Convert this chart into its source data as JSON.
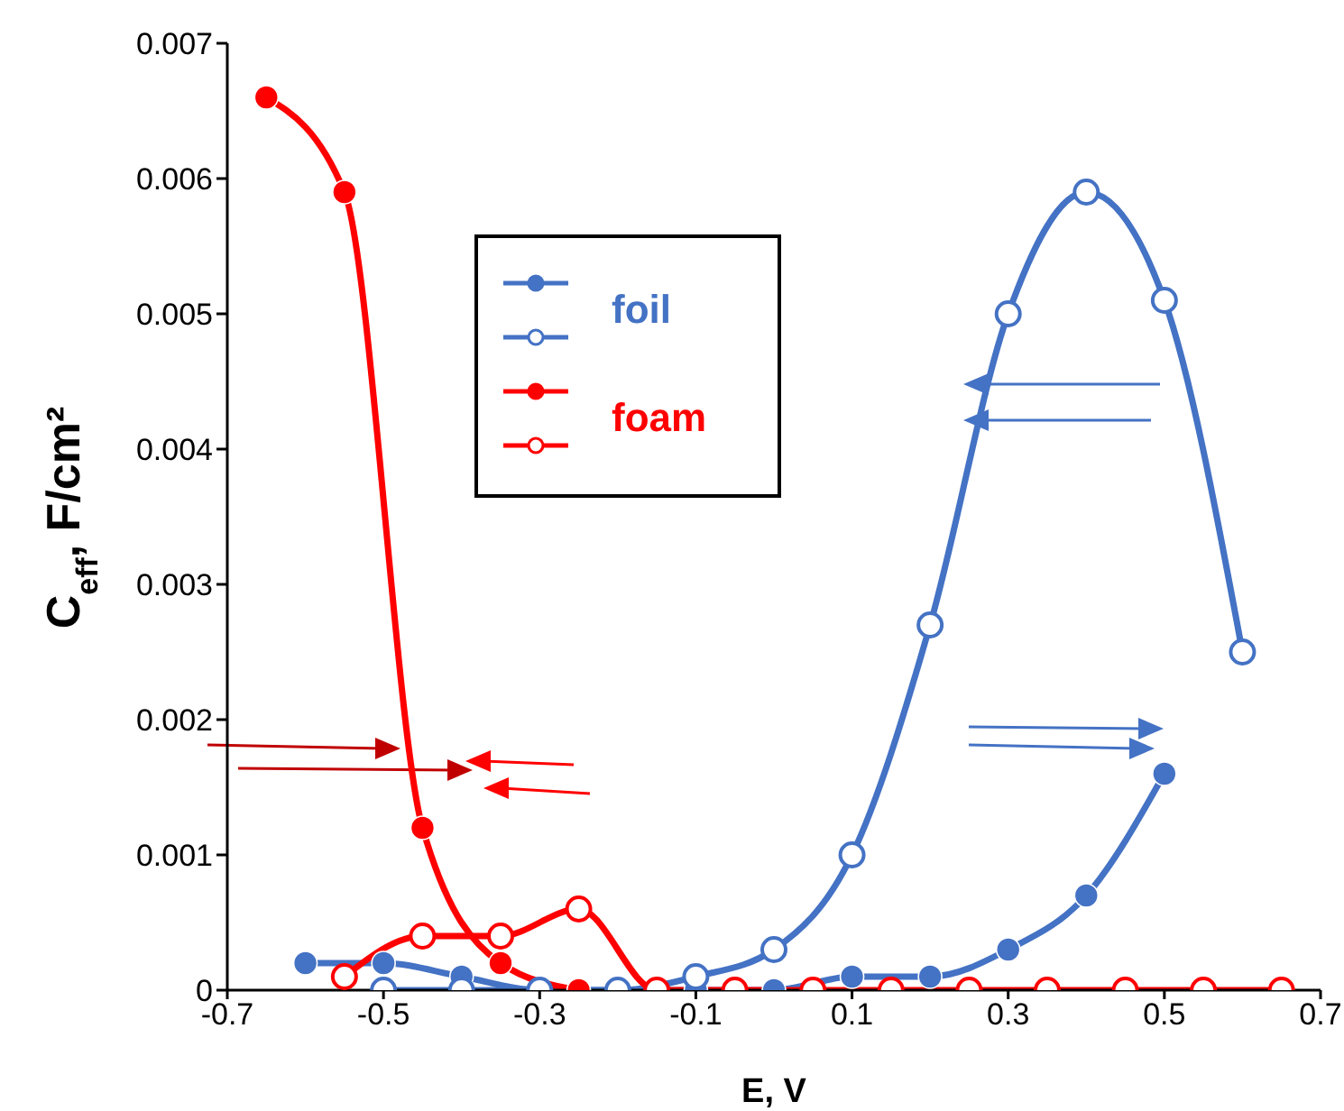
{
  "chart_data": {
    "type": "line",
    "xlabel": "E, V",
    "ylabel": "C$_{eff}$, F/cm²",
    "xlim": [
      -0.7,
      0.7
    ],
    "xticks": [
      -0.7,
      -0.5,
      -0.3,
      -0.1,
      0.1,
      0.3,
      0.5,
      0.7
    ],
    "ylim": [
      0,
      0.007
    ],
    "yticks": [
      0,
      0.001,
      0.002,
      0.003,
      0.004,
      0.005,
      0.006,
      0.007
    ],
    "grid": false,
    "legend": "top left",
    "marker": "circle",
    "line_style": "solid",
    "series": [
      {
        "name": "foil",
        "color": "#4472c4",
        "x": [
          -0.6,
          -0.5,
          -0.4,
          -0.3,
          -0.2,
          -0.1,
          0,
          0.1,
          0.2,
          0.3,
          0.4,
          0.5
        ],
        "values": [
          0.0002,
          0.0002,
          0.0001,
          0,
          0,
          0,
          0,
          0.0001,
          0.0001,
          0.0003,
          0.0007,
          0.0016
        ]
      },
      {
        "color": "#4472c4",
        "x": [
          -0.5,
          -0.4,
          -0.3,
          -0.2,
          -0.1,
          0,
          0.1,
          0.2,
          0.3,
          0.4,
          0.5,
          0.6
        ],
        "values": [
          0,
          0,
          0,
          0,
          0.0001,
          0.0003,
          0.001,
          0.0027,
          0.005,
          0.0059,
          0.0051,
          0.0025
        ]
      },
      {
        "name": "foam",
        "color": "#ff0000",
        "x": [
          -0.65,
          -0.55,
          -0.45,
          -0.35,
          -0.25
        ],
        "values": [
          0.0066,
          0.0059,
          0.0012,
          0.0002,
          0
        ]
      },
      {
        "color": "#ff0000",
        "x": [
          -0.55,
          -0.45,
          -0.35,
          -0.25,
          -0.15,
          -0.05,
          0.05,
          0.15,
          0.25,
          0.35,
          0.45,
          0.55,
          0.65
        ],
        "values": [
          0.0001,
          0.0004,
          0.0004,
          0.0006,
          0,
          0,
          0,
          0,
          0,
          0,
          0,
          0,
          0
        ]
      }
    ]
  }
}
